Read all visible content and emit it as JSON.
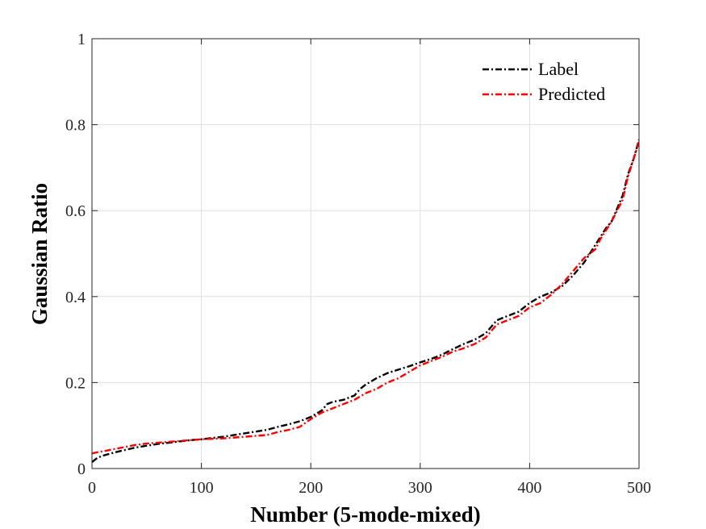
{
  "chart_data": {
    "type": "line",
    "title": "",
    "xlabel": "Number (5-mode-mixed)",
    "ylabel": "Gaussian Ratio",
    "xlim": [
      0,
      500
    ],
    "ylim": [
      0,
      1
    ],
    "x_ticks": [
      0,
      100,
      200,
      300,
      400,
      500
    ],
    "y_ticks": [
      0,
      0.2,
      0.4,
      0.6,
      0.8,
      1
    ],
    "x_tick_labels": [
      "0",
      "100",
      "200",
      "300",
      "400",
      "500"
    ],
    "y_tick_labels": [
      "0",
      "0.2",
      "0.4",
      "0.6",
      "0.8",
      "1"
    ],
    "grid": true,
    "legend_position": "top-right",
    "series": [
      {
        "name": "Label",
        "color": "#000000",
        "dash": "dash-dot",
        "x": [
          0,
          5,
          10,
          20,
          30,
          40,
          50,
          60,
          70,
          80,
          90,
          100,
          110,
          120,
          130,
          140,
          150,
          160,
          170,
          180,
          190,
          200,
          210,
          215,
          220,
          230,
          240,
          245,
          250,
          260,
          270,
          280,
          290,
          300,
          310,
          320,
          330,
          340,
          350,
          360,
          370,
          380,
          390,
          400,
          410,
          420,
          430,
          440,
          450,
          460,
          465,
          470,
          475,
          480,
          485,
          490,
          495,
          500
        ],
        "y": [
          0.015,
          0.025,
          0.03,
          0.037,
          0.043,
          0.049,
          0.053,
          0.057,
          0.06,
          0.063,
          0.066,
          0.068,
          0.071,
          0.074,
          0.078,
          0.082,
          0.086,
          0.09,
          0.097,
          0.103,
          0.11,
          0.12,
          0.135,
          0.15,
          0.155,
          0.16,
          0.17,
          0.185,
          0.195,
          0.21,
          0.222,
          0.23,
          0.238,
          0.247,
          0.255,
          0.265,
          0.278,
          0.29,
          0.3,
          0.315,
          0.345,
          0.355,
          0.365,
          0.385,
          0.4,
          0.41,
          0.425,
          0.45,
          0.48,
          0.52,
          0.54,
          0.56,
          0.575,
          0.605,
          0.635,
          0.685,
          0.72,
          0.765
        ]
      },
      {
        "name": "Predicted",
        "color": "#ff0000",
        "dash": "dash-dot",
        "x": [
          0,
          5,
          10,
          20,
          30,
          40,
          50,
          60,
          70,
          80,
          90,
          100,
          110,
          120,
          130,
          140,
          150,
          160,
          170,
          180,
          190,
          200,
          210,
          220,
          230,
          240,
          250,
          260,
          270,
          280,
          290,
          300,
          310,
          320,
          330,
          340,
          350,
          360,
          370,
          380,
          390,
          400,
          410,
          420,
          430,
          440,
          450,
          460,
          465,
          470,
          475,
          480,
          485,
          490,
          495,
          500
        ],
        "y": [
          0.035,
          0.038,
          0.04,
          0.045,
          0.05,
          0.055,
          0.058,
          0.06,
          0.062,
          0.064,
          0.066,
          0.068,
          0.069,
          0.07,
          0.072,
          0.074,
          0.076,
          0.078,
          0.085,
          0.09,
          0.097,
          0.115,
          0.13,
          0.14,
          0.15,
          0.16,
          0.175,
          0.185,
          0.2,
          0.21,
          0.225,
          0.24,
          0.25,
          0.26,
          0.272,
          0.28,
          0.29,
          0.305,
          0.335,
          0.345,
          0.355,
          0.375,
          0.385,
          0.405,
          0.43,
          0.46,
          0.49,
          0.51,
          0.535,
          0.555,
          0.575,
          0.6,
          0.625,
          0.68,
          0.72,
          0.76
        ]
      }
    ]
  }
}
